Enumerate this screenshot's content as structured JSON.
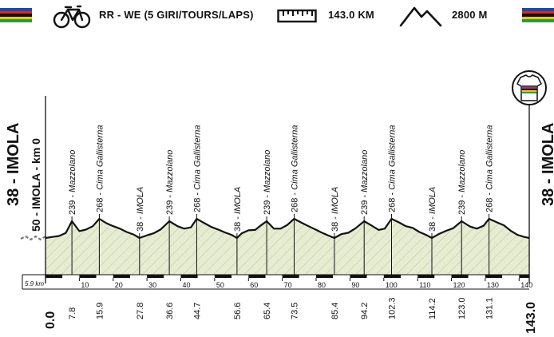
{
  "header": {
    "race": "RR - WE (5 GIRI/TOURS/LAPS)",
    "distance": "143.0 KM",
    "elevation_gain": "2800 M",
    "rainbow_colors": [
      "#1d4aa3",
      "#d62b25",
      "#111111",
      "#f6c51a",
      "#2c9a3f"
    ]
  },
  "side_labels": {
    "start_top": "38 - IMOLA",
    "start_sub": "50 - IMOLA - km 0",
    "finish": "38 - IMOLA"
  },
  "profile_colors": {
    "fill": "#e6ecd2",
    "stroke": "#111111",
    "accent": "#777777"
  },
  "chart_data": {
    "type": "area",
    "elevation_profile_km": [
      0,
      2,
      4,
      6,
      7.8,
      10,
      12,
      14,
      15.9,
      18,
      20,
      22,
      24,
      26,
      27.8,
      30,
      32,
      34,
      36.6,
      39,
      41,
      43,
      44.7,
      47,
      49,
      51,
      53,
      55,
      56.6,
      58,
      60,
      62,
      63.5,
      65.4,
      67.5,
      69.5,
      71.5,
      73.5,
      75.5,
      77.5,
      79.5,
      81.5,
      83.5,
      85.4,
      87.5,
      89.5,
      91.5,
      94.2,
      96.5,
      98.5,
      100.3,
      102.3,
      104.5,
      106.5,
      108.5,
      110.5,
      112.5,
      114.2,
      116.5,
      118.5,
      120.5,
      123.0,
      125.5,
      127.5,
      129.5,
      131.1,
      133.5,
      135.5,
      137.5,
      139.5,
      141.5,
      143.0
    ],
    "elevation_profile_m": [
      38,
      50,
      62,
      98,
      239,
      120,
      140,
      180,
      268,
      215,
      180,
      150,
      110,
      80,
      38,
      70,
      95,
      140,
      239,
      180,
      150,
      165,
      268,
      215,
      170,
      140,
      105,
      75,
      38,
      95,
      130,
      135,
      185,
      239,
      150,
      150,
      195,
      268,
      225,
      185,
      145,
      105,
      70,
      38,
      85,
      100,
      150,
      239,
      185,
      135,
      150,
      268,
      225,
      180,
      160,
      110,
      75,
      38,
      90,
      125,
      155,
      239,
      175,
      150,
      185,
      268,
      225,
      190,
      125,
      75,
      50,
      38
    ],
    "waypoints": [
      {
        "km": "7.8",
        "label": "239 - Mazzolano"
      },
      {
        "km": "15.9",
        "label": "268 - Cima Gallisterna"
      },
      {
        "km": "27.8",
        "label": "38 - IMOLA"
      },
      {
        "km": "36.6",
        "label": "239 - Mazzolano"
      },
      {
        "km": "44.7",
        "label": "268 - Cima Gallisterna"
      },
      {
        "km": "56.6",
        "label": "38 - IMOLA"
      },
      {
        "km": "65.4",
        "label": "239 - Mazzolano"
      },
      {
        "km": "73.5",
        "label": "268 - Cima Gallisterna"
      },
      {
        "km": "85.4",
        "label": "38 - IMOLA"
      },
      {
        "km": "94.2",
        "label": "239 - Mazzolano"
      },
      {
        "km": "102.3",
        "label": "268 - Cima Gallisterna"
      },
      {
        "km": "114.2",
        "label": "38 - IMOLA"
      },
      {
        "km": "123.0",
        "label": "239 - Mazzolano"
      },
      {
        "km": "131.1",
        "label": "268 - Cima Gallisterna"
      }
    ],
    "start_km_label": "0.0",
    "finish_km_label": "143.0",
    "neutral_label": "5.9 km",
    "neutral_km": 5.9,
    "x_ticks": [
      "10",
      "20",
      "30",
      "40",
      "50",
      "60",
      "70",
      "80",
      "90",
      "100",
      "110",
      "120",
      "130",
      "140"
    ],
    "xlim": [
      0,
      143
    ],
    "ylim": [
      0,
      300
    ]
  }
}
